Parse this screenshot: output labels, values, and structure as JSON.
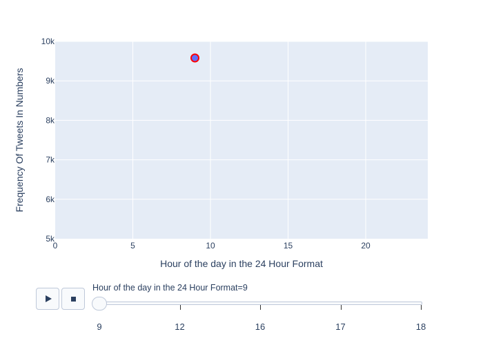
{
  "chart_data": {
    "type": "scatter",
    "xlabel": "Hour of the day in the 24 Hour Format",
    "ylabel": "Frequency Of Tweets In Numbers",
    "xlim": [
      0,
      24
    ],
    "ylim": [
      5000,
      10000
    ],
    "x_ticks": [
      0,
      5,
      10,
      15,
      20
    ],
    "y_ticks": [
      {
        "value": 5000,
        "label": "5k"
      },
      {
        "value": 6000,
        "label": "6k"
      },
      {
        "value": 7000,
        "label": "7k"
      },
      {
        "value": 8000,
        "label": "8k"
      },
      {
        "value": 9000,
        "label": "9k"
      },
      {
        "value": 10000,
        "label": "10k"
      }
    ],
    "grid": true,
    "series": [
      {
        "points": [
          {
            "x": 9,
            "y": 9580
          }
        ],
        "marker_fill": "#636efa",
        "marker_line": "#ff0000"
      }
    ]
  },
  "colors": {
    "plot_background": "#e5ecf6",
    "grid": "#ffffff",
    "text": "#2a3f5f"
  },
  "animation_controls": {
    "play_icon": "play-icon",
    "stop_icon": "stop-icon"
  },
  "slider": {
    "current_label": "Hour of the day in the 24 Hour Format=9",
    "steps": [
      "9",
      "12",
      "16",
      "17",
      "18"
    ],
    "active_index": 0
  }
}
